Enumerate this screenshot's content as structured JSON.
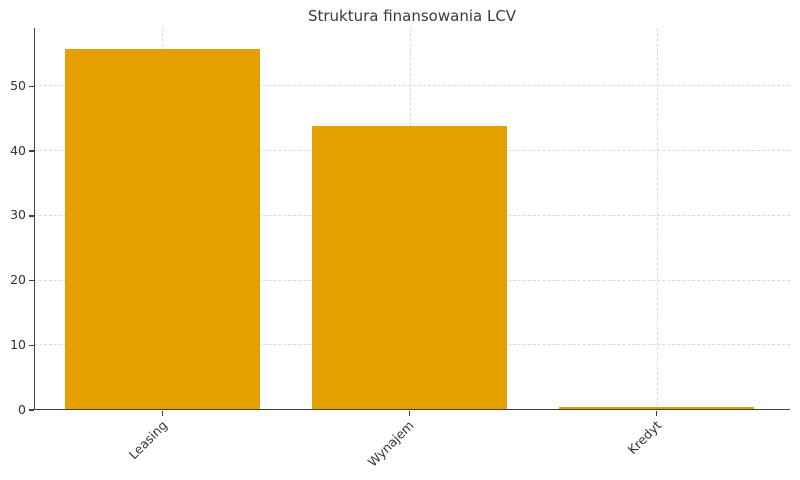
{
  "chart_data": {
    "type": "bar",
    "title": "Struktura finansowania LCV",
    "categories": [
      "Leasing",
      "Wynajem",
      "Kredyt"
    ],
    "values": [
      55.7,
      43.8,
      0.5
    ],
    "xlabel": "",
    "ylabel": "",
    "yticks": [
      0,
      10,
      20,
      30,
      40,
      50
    ],
    "ylim": [
      0,
      59
    ],
    "xlim": [
      -0.52,
      2.54
    ],
    "bar_width": 0.79,
    "bar_color": "#E69F00",
    "grid": "dashed, both axes, drawn under bars",
    "grid_color": "#d9d9d9",
    "axis_color": "#3f3f3f",
    "text_color": "#333333",
    "title_color": "#3a3a3a",
    "background": "#ffffff",
    "legend": "none",
    "x_tick_label_rotation_deg": 45
  }
}
